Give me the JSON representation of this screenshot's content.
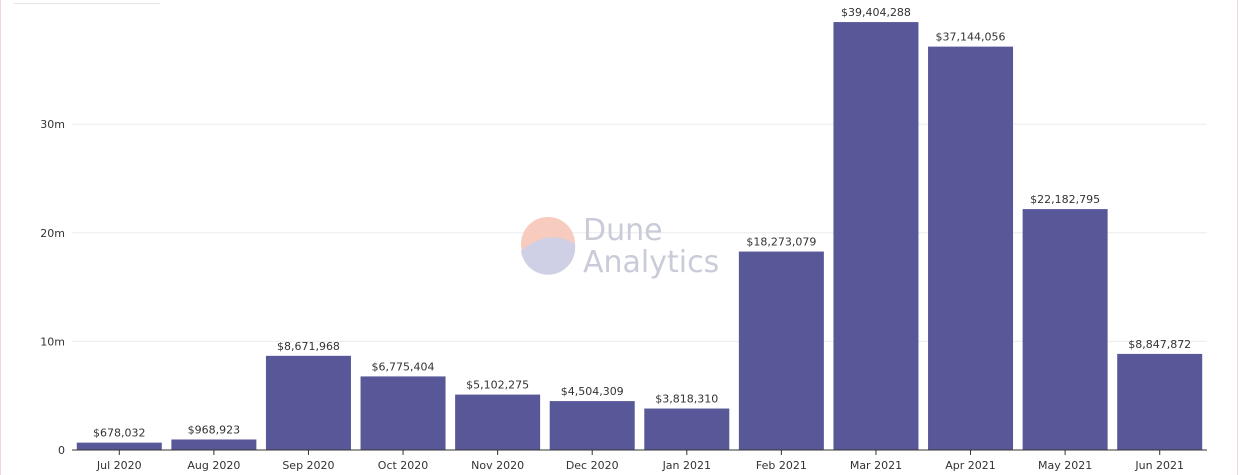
{
  "colors": {
    "bar": "#585899",
    "grid": "#ececec",
    "axis": "#333333",
    "watermark_orange": "#f7cbbd",
    "watermark_purple": "#cfd0e6",
    "watermark_text": "#c9ccd8"
  },
  "watermark": {
    "line1": "Dune",
    "line2": "Analytics",
    "icon": "dune-logo-icon"
  },
  "chart_data": {
    "type": "bar",
    "categories": [
      "Jul 2020",
      "Aug 2020",
      "Sep 2020",
      "Oct 2020",
      "Nov 2020",
      "Dec 2020",
      "Jan 2021",
      "Feb 2021",
      "Mar 2021",
      "Apr 2021",
      "May 2021",
      "Jun 2021"
    ],
    "values": [
      678032,
      968923,
      8671968,
      6775404,
      5102275,
      4504309,
      3818310,
      18273079,
      39404288,
      37144056,
      22182795,
      8847872
    ],
    "data_labels": [
      "$678,032",
      "$968,923",
      "$8,671,968",
      "$6,775,404",
      "$5,102,275",
      "$4,504,309",
      "$3,818,310",
      "$18,273,079",
      "$39,404,288",
      "$37,144,056",
      "$22,182,795",
      "$8,847,872"
    ],
    "yticks": [
      0,
      10000000,
      20000000,
      30000000
    ],
    "ytick_labels": [
      "0",
      "10m",
      "20m",
      "30m"
    ],
    "ylim": [
      0,
      41500000
    ],
    "grid": true
  }
}
